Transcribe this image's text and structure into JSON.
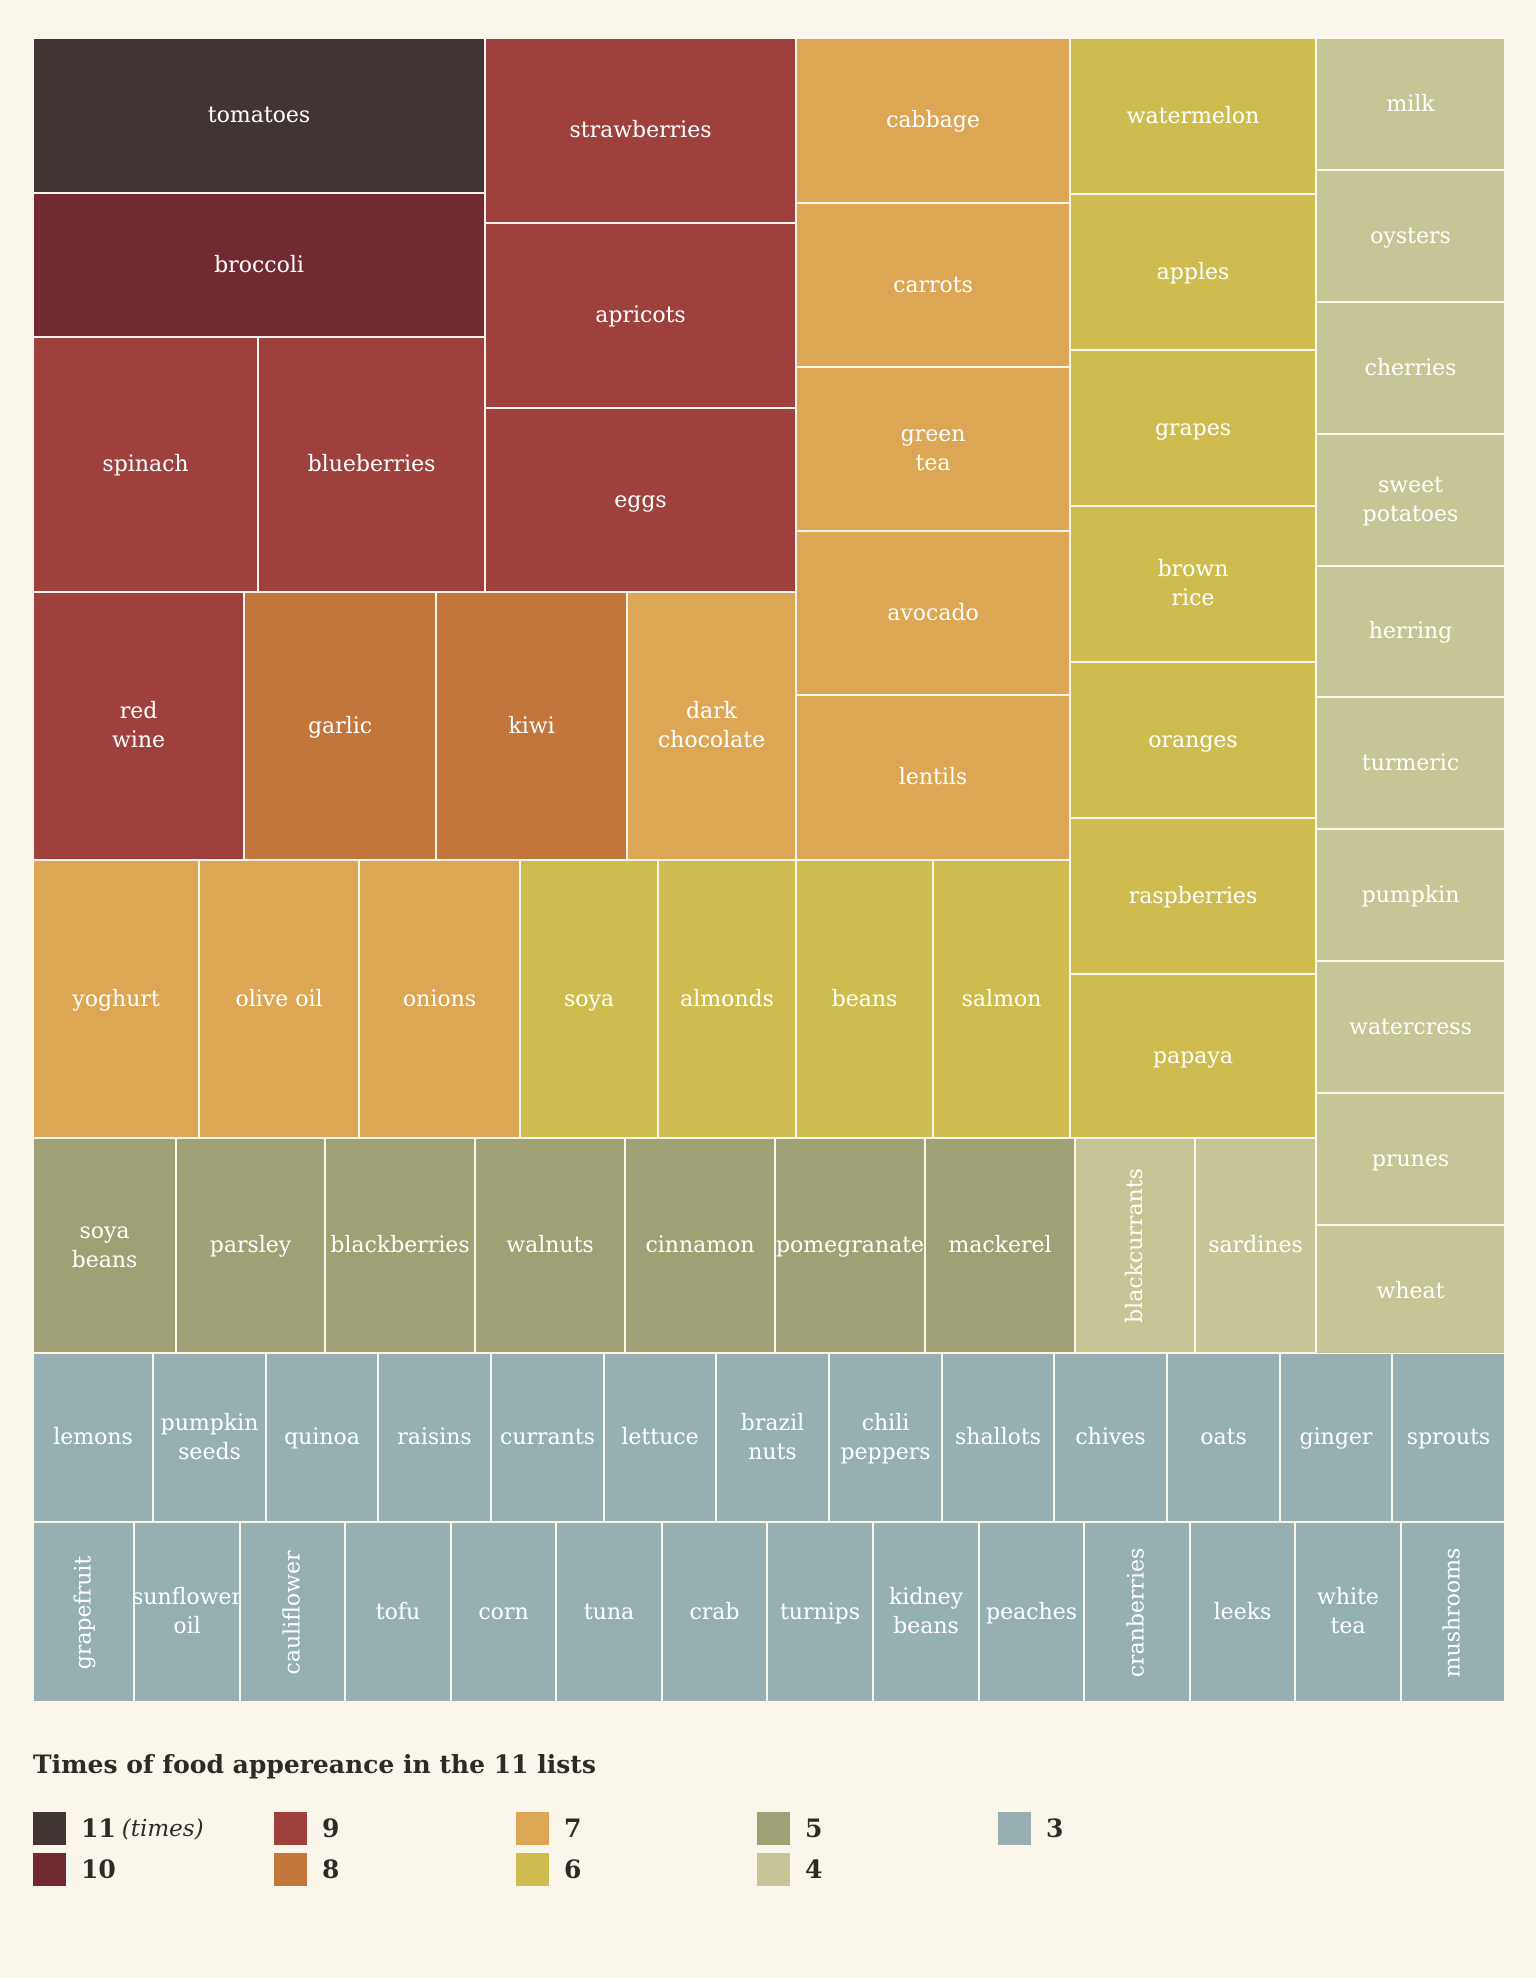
{
  "chart_data": {
    "type": "treemap",
    "legend": {
      "title": "Times of food appereance in the 11 lists",
      "unit_label": "(times)",
      "items": [
        {
          "value": 11,
          "label": "11",
          "color": "#403533"
        },
        {
          "value": 10,
          "label": "10",
          "color": "#712b30"
        },
        {
          "value": 9,
          "label": "9",
          "color": "#9e403b"
        },
        {
          "value": 8,
          "label": "8",
          "color": "#c2763c"
        },
        {
          "value": 7,
          "label": "7",
          "color": "#dca654"
        },
        {
          "value": 6,
          "label": "6",
          "color": "#cfbc4e"
        },
        {
          "value": 5,
          "label": "5",
          "color": "#9fa073"
        },
        {
          "value": 4,
          "label": "4",
          "color": "#c5c595"
        },
        {
          "value": 3,
          "label": "3",
          "color": "#96afb1"
        }
      ]
    },
    "items": [
      {
        "name": "tomatoes",
        "value": 11
      },
      {
        "name": "broccoli",
        "value": 10
      },
      {
        "name": "spinach",
        "value": 9
      },
      {
        "name": "blueberries",
        "value": 9
      },
      {
        "name": "strawberries",
        "value": 9
      },
      {
        "name": "apricots",
        "value": 9
      },
      {
        "name": "eggs",
        "value": 9
      },
      {
        "name": "red\nwine",
        "value": 9
      },
      {
        "name": "garlic",
        "value": 8
      },
      {
        "name": "kiwi",
        "value": 8
      },
      {
        "name": "dark\nchocolate",
        "value": 7
      },
      {
        "name": "cabbage",
        "value": 7
      },
      {
        "name": "carrots",
        "value": 7
      },
      {
        "name": "green\ntea",
        "value": 7
      },
      {
        "name": "avocado",
        "value": 7
      },
      {
        "name": "lentils",
        "value": 7
      },
      {
        "name": "yoghurt",
        "value": 7
      },
      {
        "name": "olive oil",
        "value": 7
      },
      {
        "name": "onions",
        "value": 7
      },
      {
        "name": "soya",
        "value": 6
      },
      {
        "name": "almonds",
        "value": 6
      },
      {
        "name": "beans",
        "value": 6
      },
      {
        "name": "salmon",
        "value": 6
      },
      {
        "name": "watermelon",
        "value": 6
      },
      {
        "name": "apples",
        "value": 6
      },
      {
        "name": "grapes",
        "value": 6
      },
      {
        "name": "brown\nrice",
        "value": 6
      },
      {
        "name": "oranges",
        "value": 6
      },
      {
        "name": "raspberries",
        "value": 6
      },
      {
        "name": "papaya",
        "value": 6
      },
      {
        "name": "milk",
        "value": 4
      },
      {
        "name": "oysters",
        "value": 4
      },
      {
        "name": "cherries",
        "value": 4
      },
      {
        "name": "sweet\npotatoes",
        "value": 4
      },
      {
        "name": "herring",
        "value": 4
      },
      {
        "name": "turmeric",
        "value": 4
      },
      {
        "name": "pumpkin",
        "value": 4
      },
      {
        "name": "watercress",
        "value": 4
      },
      {
        "name": "prunes",
        "value": 4
      },
      {
        "name": "wheat",
        "value": 4
      },
      {
        "name": "soya\nbeans",
        "value": 5
      },
      {
        "name": "parsley",
        "value": 5
      },
      {
        "name": "blackberries",
        "value": 5
      },
      {
        "name": "walnuts",
        "value": 5
      },
      {
        "name": "cinnamon",
        "value": 5
      },
      {
        "name": "pomegranate",
        "value": 5
      },
      {
        "name": "mackerel",
        "value": 5
      },
      {
        "name": "blackcurrants",
        "value": 4
      },
      {
        "name": "sardines",
        "value": 4
      },
      {
        "name": "lemons",
        "value": 3
      },
      {
        "name": "pumpkin\nseeds",
        "value": 3
      },
      {
        "name": "quinoa",
        "value": 3
      },
      {
        "name": "raisins",
        "value": 3
      },
      {
        "name": "currants",
        "value": 3
      },
      {
        "name": "lettuce",
        "value": 3
      },
      {
        "name": "brazil\nnuts",
        "value": 3
      },
      {
        "name": "chili\npeppers",
        "value": 3
      },
      {
        "name": "shallots",
        "value": 3
      },
      {
        "name": "chives",
        "value": 3
      },
      {
        "name": "oats",
        "value": 3
      },
      {
        "name": "ginger",
        "value": 3
      },
      {
        "name": "sprouts",
        "value": 3
      },
      {
        "name": "grapefruit",
        "value": 3
      },
      {
        "name": "sunflower\noil",
        "value": 3
      },
      {
        "name": "cauliflower",
        "value": 3
      },
      {
        "name": "tofu",
        "value": 3
      },
      {
        "name": "corn",
        "value": 3
      },
      {
        "name": "tuna",
        "value": 3
      },
      {
        "name": "crab",
        "value": 3
      },
      {
        "name": "turnips",
        "value": 3
      },
      {
        "name": "kidney\nbeans",
        "value": 3
      },
      {
        "name": "peaches",
        "value": 3
      },
      {
        "name": "cranberries",
        "value": 3
      },
      {
        "name": "leeks",
        "value": 3
      },
      {
        "name": "white\ntea",
        "value": 3
      },
      {
        "name": "mushrooms",
        "value": 3
      }
    ]
  }
}
